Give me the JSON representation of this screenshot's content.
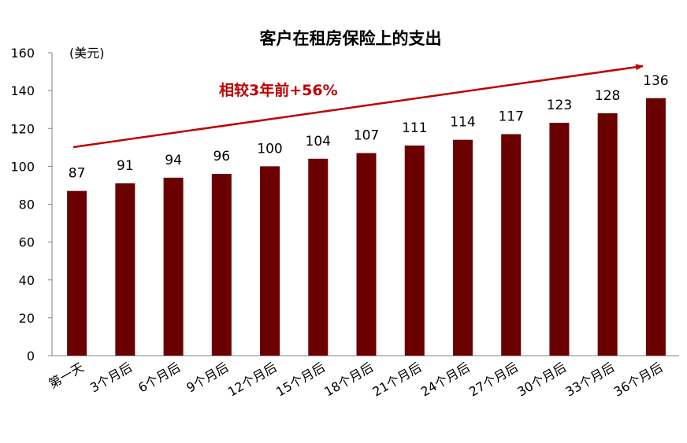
{
  "chart_data": {
    "type": "bar",
    "title": "客户在租房保险上的支出",
    "unit_label": "(美元)",
    "annotation": "相较3年前+56%",
    "categories": [
      "第一天",
      "3个月后",
      "6个月后",
      "9个月后",
      "12个月后",
      "15个月后",
      "18个月后",
      "21个月后",
      "24个月后",
      "27个月后",
      "30个月后",
      "33个月后",
      "36个月后"
    ],
    "values": [
      87,
      91,
      94,
      96,
      100,
      104,
      107,
      111,
      114,
      117,
      123,
      128,
      136
    ],
    "yticks": [
      "0",
      "20",
      "40",
      "60",
      "80",
      "100",
      "120",
      "140",
      "160"
    ],
    "ylim": [
      0,
      160
    ],
    "grid": false,
    "bar_color": "#6B0000",
    "annotation_color": "#C00000"
  }
}
